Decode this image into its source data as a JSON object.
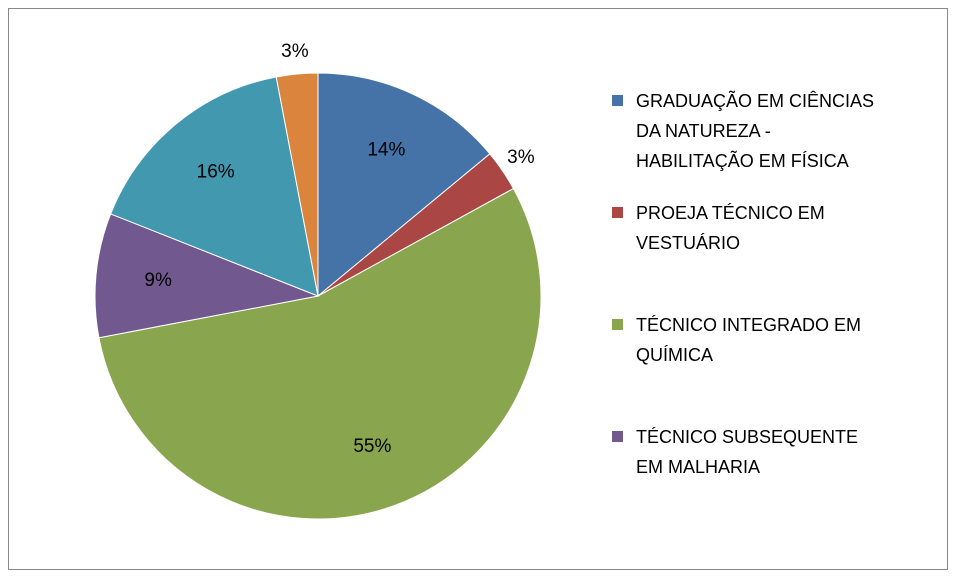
{
  "chart_data": {
    "type": "pie",
    "categories": [
      "GRADUAÇÃO EM CIÊNCIAS DA NATUREZA - HABILITAÇÃO EM FÍSICA",
      "PROEJA TÉCNICO EM VESTUÁRIO",
      "TÉCNICO INTEGRADO EM QUÍMICA",
      "TÉCNICO SUBSEQUENTE EM MALHARIA",
      null,
      null
    ],
    "values": [
      14,
      3,
      55,
      9,
      16,
      3
    ],
    "value_labels": [
      "14%",
      "3%",
      "55%",
      "9%",
      "16%",
      "3%"
    ],
    "colors": [
      "#4572a7",
      "#aa4643",
      "#89a54e",
      "#71588f",
      "#4198af",
      "#db843d"
    ]
  }
}
